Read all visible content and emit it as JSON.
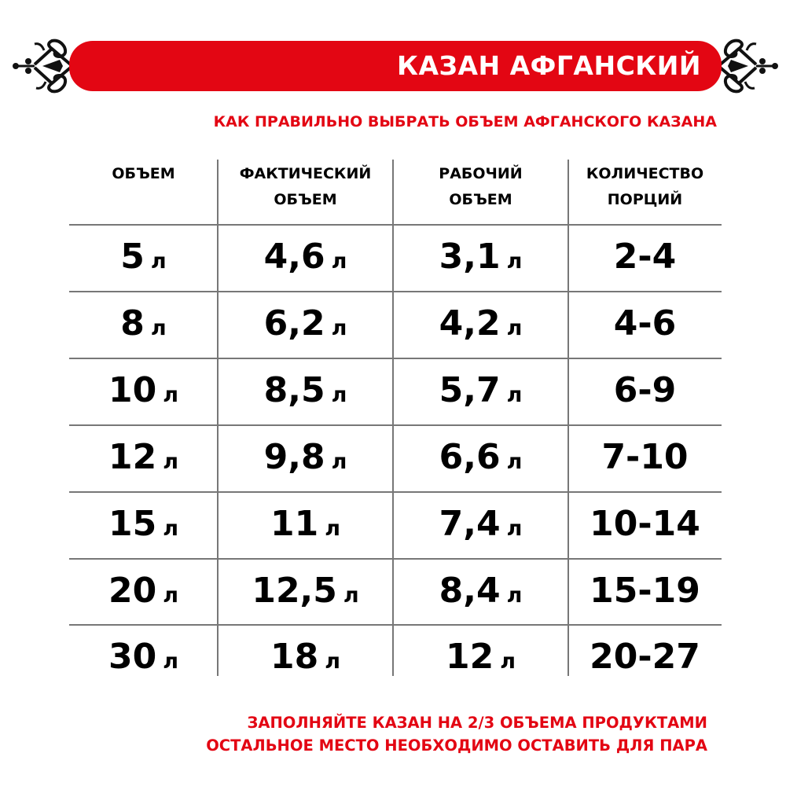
{
  "title": "КАЗАН АФГАНСКИЙ",
  "subtitle": "КАК ПРАВИЛЬНО ВЫБРАТЬ ОБЪЕМ АФГАНСКОГО КАЗАНА",
  "accent_color": "#e30613",
  "ornament_icon": "ornamental-scroll-heart",
  "table": {
    "headers": [
      {
        "line1": "ОБЪЕМ",
        "line2": ""
      },
      {
        "line1": "ФАКТИЧЕСКИЙ",
        "line2": "ОБЪЕМ"
      },
      {
        "line1": "РАБОЧИЙ",
        "line2": "ОБЪЕМ"
      },
      {
        "line1": "КОЛИЧЕСТВО",
        "line2": "ПОРЦИЙ"
      }
    ],
    "unit": "л",
    "rows": [
      [
        "5",
        "4,6",
        "3,1",
        "2-4"
      ],
      [
        "8",
        "6,2",
        "4,2",
        "4-6"
      ],
      [
        "10",
        "8,5",
        "5,7",
        "6-9"
      ],
      [
        "12",
        "9,8",
        "6,6",
        "7-10"
      ],
      [
        "15",
        "11",
        "7,4",
        "10-14"
      ],
      [
        "20",
        "12,5",
        "8,4",
        "15-19"
      ],
      [
        "30",
        "18",
        "12",
        "20-27"
      ]
    ]
  },
  "footer": {
    "line1": "ЗАПОЛНЯЙТЕ КАЗАН НА 2/3 ОБЪЕМА ПРОДУКТАМИ",
    "line2": "ОСТАЛЬНОЕ МЕСТО НЕОБХОДИМО ОСТАВИТЬ ДЛЯ ПАРА"
  }
}
